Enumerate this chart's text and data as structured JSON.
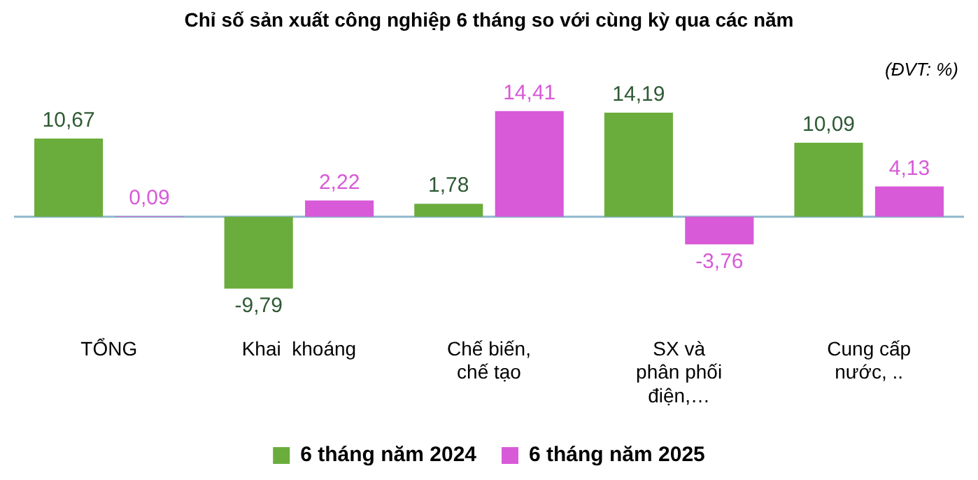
{
  "chart_data": {
    "type": "bar",
    "title": "Chỉ số sản xuất công nghiệp 6 tháng so với cùng kỳ qua các năm",
    "annotations": [
      "(ĐVT: %)"
    ],
    "categories": [
      "TỔNG",
      "Khai  khoáng",
      "Chế biến,\nchế tạo",
      "SX và\nphân phối\nđiện,…",
      "Cung cấp\nnước, .."
    ],
    "series": [
      {
        "name": "6 tháng năm 2024",
        "color": "#6aad3c",
        "values": [
          10.67,
          -9.79,
          1.78,
          14.19,
          10.09
        ],
        "value_labels": [
          "10,67",
          "-9,79",
          "1,78",
          "14,19",
          "10,09"
        ]
      },
      {
        "name": "6 tháng năm 2025",
        "color": "#d85ad8",
        "values": [
          0.09,
          2.22,
          14.41,
          -3.76,
          4.13
        ],
        "value_labels": [
          "0,09",
          "2,22",
          "14,41",
          "-3,76",
          "4,13"
        ]
      }
    ],
    "ref_lines": [
      {
        "axis": "y",
        "value": 0,
        "color": "#8fb8cc"
      }
    ],
    "legend": "bottom",
    "grid": false
  }
}
